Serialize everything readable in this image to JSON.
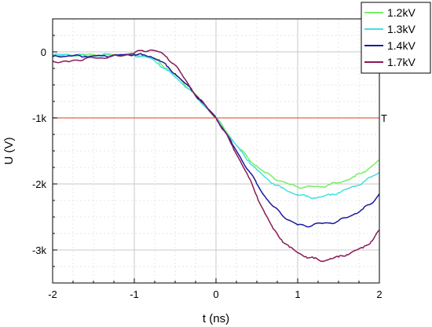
{
  "chart_data": {
    "type": "line",
    "xlabel": "t (ns)",
    "ylabel": "U (V)",
    "xlim": [
      -2,
      2
    ],
    "ylim": [
      -3500,
      500
    ],
    "x_ticks": [
      -2,
      -1,
      0,
      1,
      2
    ],
    "x_tick_labels": [
      "-2",
      "-1",
      "0",
      "1",
      "2"
    ],
    "y_ticks": [
      0,
      -1000,
      -2000,
      -3000
    ],
    "y_tick_labels": [
      "0",
      "-1k",
      "-2k",
      "-3k"
    ],
    "grid": true,
    "legend_position": "top-right",
    "threshold": {
      "value": -1000,
      "label": "T",
      "color": "#e8604a"
    },
    "series": [
      {
        "name": "1.2kV",
        "color": "#77ee66",
        "points": [
          [
            -2,
            -60
          ],
          [
            -1.8,
            -50
          ],
          [
            -1.6,
            -40
          ],
          [
            -1.4,
            -50
          ],
          [
            -1.2,
            -40
          ],
          [
            -1,
            -40
          ],
          [
            -0.9,
            -60
          ],
          [
            -0.8,
            -80
          ],
          [
            -0.7,
            -150
          ],
          [
            -0.6,
            -250
          ],
          [
            -0.5,
            -350
          ],
          [
            -0.4,
            -470
          ],
          [
            -0.3,
            -580
          ],
          [
            -0.2,
            -720
          ],
          [
            -0.1,
            -860
          ],
          [
            0,
            -1000
          ],
          [
            0.1,
            -1160
          ],
          [
            0.2,
            -1330
          ],
          [
            0.3,
            -1480
          ],
          [
            0.4,
            -1620
          ],
          [
            0.5,
            -1730
          ],
          [
            0.6,
            -1830
          ],
          [
            0.7,
            -1900
          ],
          [
            0.8,
            -1960
          ],
          [
            0.9,
            -2010
          ],
          [
            1,
            -2040
          ],
          [
            1.1,
            -2050
          ],
          [
            1.2,
            -2040
          ],
          [
            1.3,
            -2040
          ],
          [
            1.4,
            -2010
          ],
          [
            1.5,
            -1980
          ],
          [
            1.6,
            -1940
          ],
          [
            1.7,
            -1890
          ],
          [
            1.8,
            -1820
          ],
          [
            1.9,
            -1740
          ],
          [
            2,
            -1640
          ]
        ]
      },
      {
        "name": "1.3kV",
        "color": "#44e0e0",
        "points": [
          [
            -2,
            -50
          ],
          [
            -1.8,
            -40
          ],
          [
            -1.6,
            -60
          ],
          [
            -1.4,
            -50
          ],
          [
            -1.2,
            -40
          ],
          [
            -1,
            -50
          ],
          [
            -0.9,
            -70
          ],
          [
            -0.8,
            -100
          ],
          [
            -0.7,
            -180
          ],
          [
            -0.6,
            -280
          ],
          [
            -0.5,
            -380
          ],
          [
            -0.4,
            -490
          ],
          [
            -0.3,
            -600
          ],
          [
            -0.2,
            -740
          ],
          [
            -0.1,
            -870
          ],
          [
            0,
            -1000
          ],
          [
            0.1,
            -1170
          ],
          [
            0.2,
            -1340
          ],
          [
            0.3,
            -1500
          ],
          [
            0.4,
            -1650
          ],
          [
            0.5,
            -1790
          ],
          [
            0.6,
            -1900
          ],
          [
            0.7,
            -1990
          ],
          [
            0.8,
            -2060
          ],
          [
            0.9,
            -2120
          ],
          [
            1,
            -2160
          ],
          [
            1.1,
            -2190
          ],
          [
            1.2,
            -2210
          ],
          [
            1.3,
            -2190
          ],
          [
            1.4,
            -2170
          ],
          [
            1.5,
            -2130
          ],
          [
            1.6,
            -2080
          ],
          [
            1.7,
            -2040
          ],
          [
            1.8,
            -1970
          ],
          [
            1.9,
            -1900
          ],
          [
            2,
            -1830
          ]
        ]
      },
      {
        "name": "1.4kV",
        "color": "#1a1aa0",
        "points": [
          [
            -2,
            -70
          ],
          [
            -1.8,
            -60
          ],
          [
            -1.6,
            -70
          ],
          [
            -1.4,
            -60
          ],
          [
            -1.2,
            -50
          ],
          [
            -1,
            -40
          ],
          [
            -0.9,
            -50
          ],
          [
            -0.8,
            -70
          ],
          [
            -0.7,
            -120
          ],
          [
            -0.6,
            -220
          ],
          [
            -0.5,
            -330
          ],
          [
            -0.4,
            -450
          ],
          [
            -0.3,
            -580
          ],
          [
            -0.2,
            -720
          ],
          [
            -0.1,
            -860
          ],
          [
            0,
            -1000
          ],
          [
            0.1,
            -1190
          ],
          [
            0.2,
            -1400
          ],
          [
            0.3,
            -1600
          ],
          [
            0.4,
            -1800
          ],
          [
            0.5,
            -2000
          ],
          [
            0.6,
            -2190
          ],
          [
            0.7,
            -2340
          ],
          [
            0.8,
            -2460
          ],
          [
            0.9,
            -2550
          ],
          [
            1,
            -2620
          ],
          [
            1.1,
            -2640
          ],
          [
            1.2,
            -2610
          ],
          [
            1.3,
            -2600
          ],
          [
            1.4,
            -2590
          ],
          [
            1.5,
            -2560
          ],
          [
            1.6,
            -2510
          ],
          [
            1.7,
            -2450
          ],
          [
            1.8,
            -2380
          ],
          [
            1.9,
            -2300
          ],
          [
            2,
            -2150
          ]
        ]
      },
      {
        "name": "1.7kV",
        "color": "#8a1a55",
        "points": [
          [
            -2,
            -140
          ],
          [
            -1.8,
            -150
          ],
          [
            -1.6,
            -100
          ],
          [
            -1.4,
            -90
          ],
          [
            -1.2,
            -60
          ],
          [
            -1,
            -20
          ],
          [
            -0.9,
            20
          ],
          [
            -0.8,
            30
          ],
          [
            -0.7,
            0
          ],
          [
            -0.6,
            -80
          ],
          [
            -0.5,
            -200
          ],
          [
            -0.4,
            -380
          ],
          [
            -0.3,
            -560
          ],
          [
            -0.2,
            -720
          ],
          [
            -0.1,
            -860
          ],
          [
            0,
            -1000
          ],
          [
            0.1,
            -1200
          ],
          [
            0.2,
            -1420
          ],
          [
            0.3,
            -1660
          ],
          [
            0.4,
            -1900
          ],
          [
            0.5,
            -2180
          ],
          [
            0.6,
            -2450
          ],
          [
            0.7,
            -2680
          ],
          [
            0.8,
            -2840
          ],
          [
            0.9,
            -2960
          ],
          [
            1,
            -3040
          ],
          [
            1.1,
            -3100
          ],
          [
            1.2,
            -3130
          ],
          [
            1.3,
            -3170
          ],
          [
            1.4,
            -3130
          ],
          [
            1.5,
            -3110
          ],
          [
            1.6,
            -3070
          ],
          [
            1.7,
            -3010
          ],
          [
            1.8,
            -2970
          ],
          [
            1.9,
            -2870
          ],
          [
            2,
            -2700
          ]
        ]
      }
    ]
  }
}
